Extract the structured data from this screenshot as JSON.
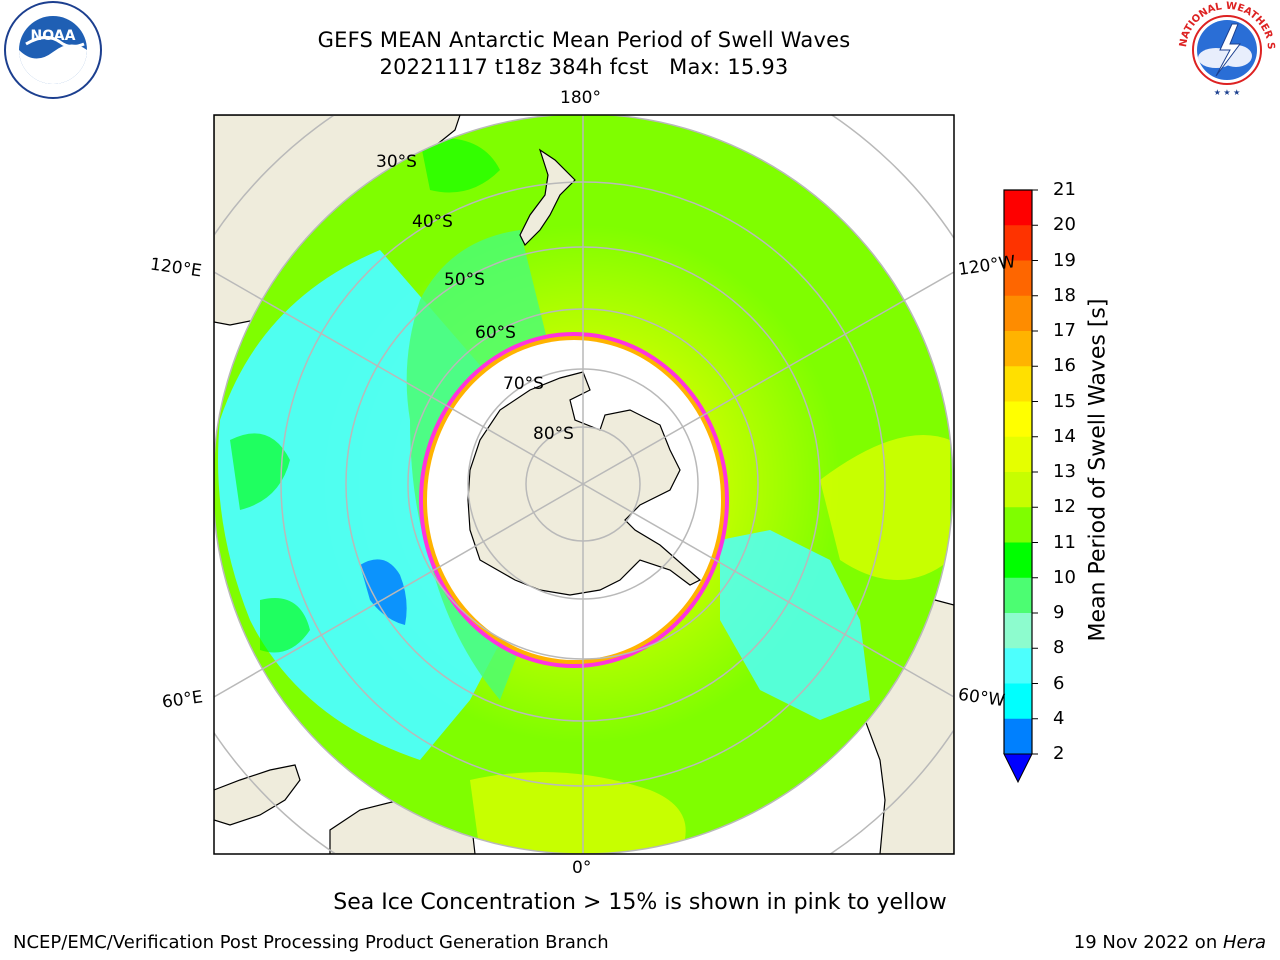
{
  "title": {
    "line1": "GEFS MEAN Antarctic Mean Period of Swell Waves",
    "line2": "20221117 t18z 384h fcst   Max: 15.93"
  },
  "logos": {
    "left": {
      "icon": "noaa-logo",
      "text": "NOAA"
    },
    "right": {
      "icon": "national-weather-service-logo",
      "text": "NATIONAL WEATHER SERVICE"
    }
  },
  "map": {
    "projection": "south-polar-stereographic",
    "longitude_labels": [
      "180°",
      "120°E",
      "120°W",
      "60°E",
      "60°W",
      "0°"
    ],
    "latitude_labels": [
      "30°S",
      "40°S",
      "50°S",
      "60°S",
      "70°S",
      "80°S"
    ],
    "colors": {
      "land": "#efecdc",
      "sea_ice": "#ffffff",
      "ice_edge": "#ff33dd",
      "grid": "#b9b9b9"
    }
  },
  "colorbar": {
    "title": "Mean Period of Swell Waves [s]",
    "ticks": [
      "21",
      "20",
      "19",
      "18",
      "17",
      "16",
      "15",
      "14",
      "13",
      "12",
      "11",
      "10",
      "9",
      "8",
      "6",
      "4",
      "2"
    ],
    "colors": [
      "#fe0000",
      "#fe3300",
      "#fe6600",
      "#fe8c00",
      "#ffb300",
      "#ffe000",
      "#ffff00",
      "#e5ff00",
      "#c7fe00",
      "#7ffe00",
      "#00ff00",
      "#4cfd72",
      "#8dfcce",
      "#4dfffd",
      "#00fffe",
      "#0080fe"
    ],
    "under_color": "#0000ff"
  },
  "caption": "Sea Ice Concentration > 15% is shown in pink to yellow",
  "footer": {
    "left": "NCEP/EMC/Verification Post Processing Product Generation Branch",
    "right_prefix": "19 Nov 2022 on ",
    "right_host": "Hera"
  }
}
